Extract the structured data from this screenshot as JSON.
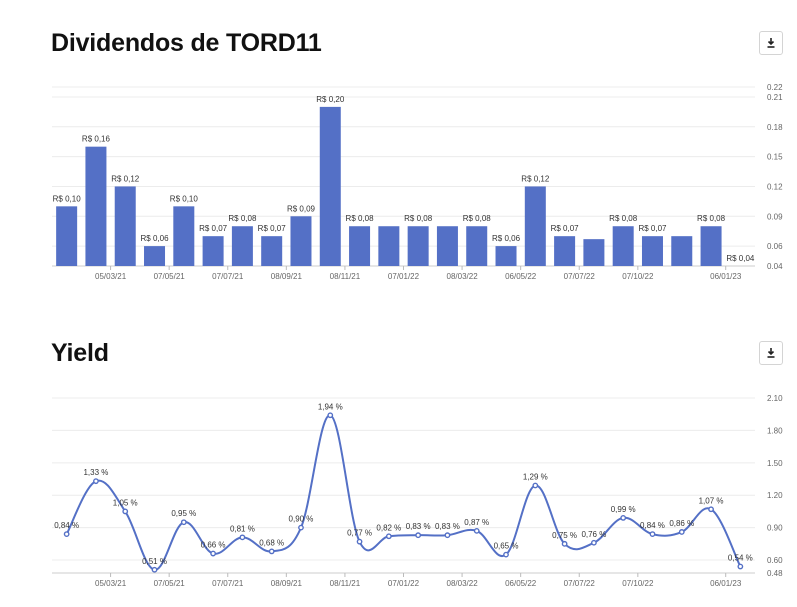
{
  "download_icon": "download-icon",
  "chart_data": [
    {
      "type": "bar",
      "title": "Dividendos de TORD11",
      "color": "#5470c6",
      "ylim": [
        0.04,
        0.22
      ],
      "yticks": [
        "0.22",
        "0.21",
        "0.18",
        "0.15",
        "0.12",
        "0.09",
        "0.06",
        "0.04"
      ],
      "ytick_values": [
        0.22,
        0.21,
        0.18,
        0.15,
        0.12,
        0.09,
        0.06,
        0.04
      ],
      "xtick_labels": [
        "05/03/21",
        "07/05/21",
        "07/07/21",
        "08/09/21",
        "08/11/21",
        "07/01/22",
        "08/03/22",
        "06/05/22",
        "07/07/22",
        "07/10/22",
        "06/01/23"
      ],
      "xtick_positions": [
        2,
        4,
        6,
        8,
        10,
        12,
        14,
        16,
        18,
        20,
        23
      ],
      "values": [
        0.1,
        0.16,
        0.12,
        0.06,
        0.1,
        0.07,
        0.08,
        0.07,
        0.09,
        0.2,
        0.08,
        0.08,
        0.08,
        0.08,
        0.08,
        0.06,
        0.12,
        0.07,
        0.067,
        0.08,
        0.07,
        0.07,
        0.08,
        0.04
      ],
      "labels": [
        "R$ 0,10",
        "R$ 0,16",
        "R$ 0,12",
        "R$ 0,06",
        "R$ 0,10",
        "R$ 0,07",
        "R$ 0,08",
        "R$ 0,07",
        "R$ 0,09",
        "R$ 0,20",
        "R$ 0,08",
        "",
        "R$ 0,08",
        "",
        "R$ 0,08",
        "R$ 0,06",
        "R$ 0,12",
        "R$ 0,07",
        "",
        "R$ 0,08",
        "R$ 0,07",
        "",
        "R$ 0,08",
        "R$ 0,04"
      ],
      "grid": true
    },
    {
      "type": "line",
      "title": "Yield",
      "color": "#5470c6",
      "ylim": [
        0.48,
        2.1
      ],
      "yticks": [
        "2.10",
        "1.80",
        "1.50",
        "1.20",
        "0.90",
        "0.60",
        "0.48"
      ],
      "ytick_values": [
        2.1,
        1.8,
        1.5,
        1.2,
        0.9,
        0.6,
        0.48
      ],
      "xtick_labels": [
        "05/03/21",
        "07/05/21",
        "07/07/21",
        "08/09/21",
        "08/11/21",
        "07/01/22",
        "08/03/22",
        "06/05/22",
        "07/07/22",
        "07/10/22",
        "06/01/23"
      ],
      "xtick_positions": [
        2,
        4,
        6,
        8,
        10,
        12,
        14,
        16,
        18,
        20,
        23
      ],
      "values": [
        0.84,
        1.33,
        1.05,
        0.51,
        0.95,
        0.66,
        0.81,
        0.68,
        0.9,
        1.94,
        0.77,
        0.82,
        0.83,
        0.83,
        0.87,
        0.65,
        1.29,
        0.75,
        0.76,
        0.99,
        0.84,
        0.86,
        1.07,
        0.54
      ],
      "labels": [
        "0,84 %",
        "1,33 %",
        "1,05 %",
        "0,51 %",
        "0,95 %",
        "0,66 %",
        "0,81 %",
        "0,68 %",
        "0,90 %",
        "1,94 %",
        "0,77 %",
        "0,82 %",
        "0,83 %",
        "0,83 %",
        "0,87 %",
        "0,65 %",
        "1,29 %",
        "0,75 %",
        "0,76 %",
        "0,99 %",
        "0,84 %",
        "0,86 %",
        "1,07 %",
        "0,54 %"
      ],
      "grid": true
    }
  ]
}
